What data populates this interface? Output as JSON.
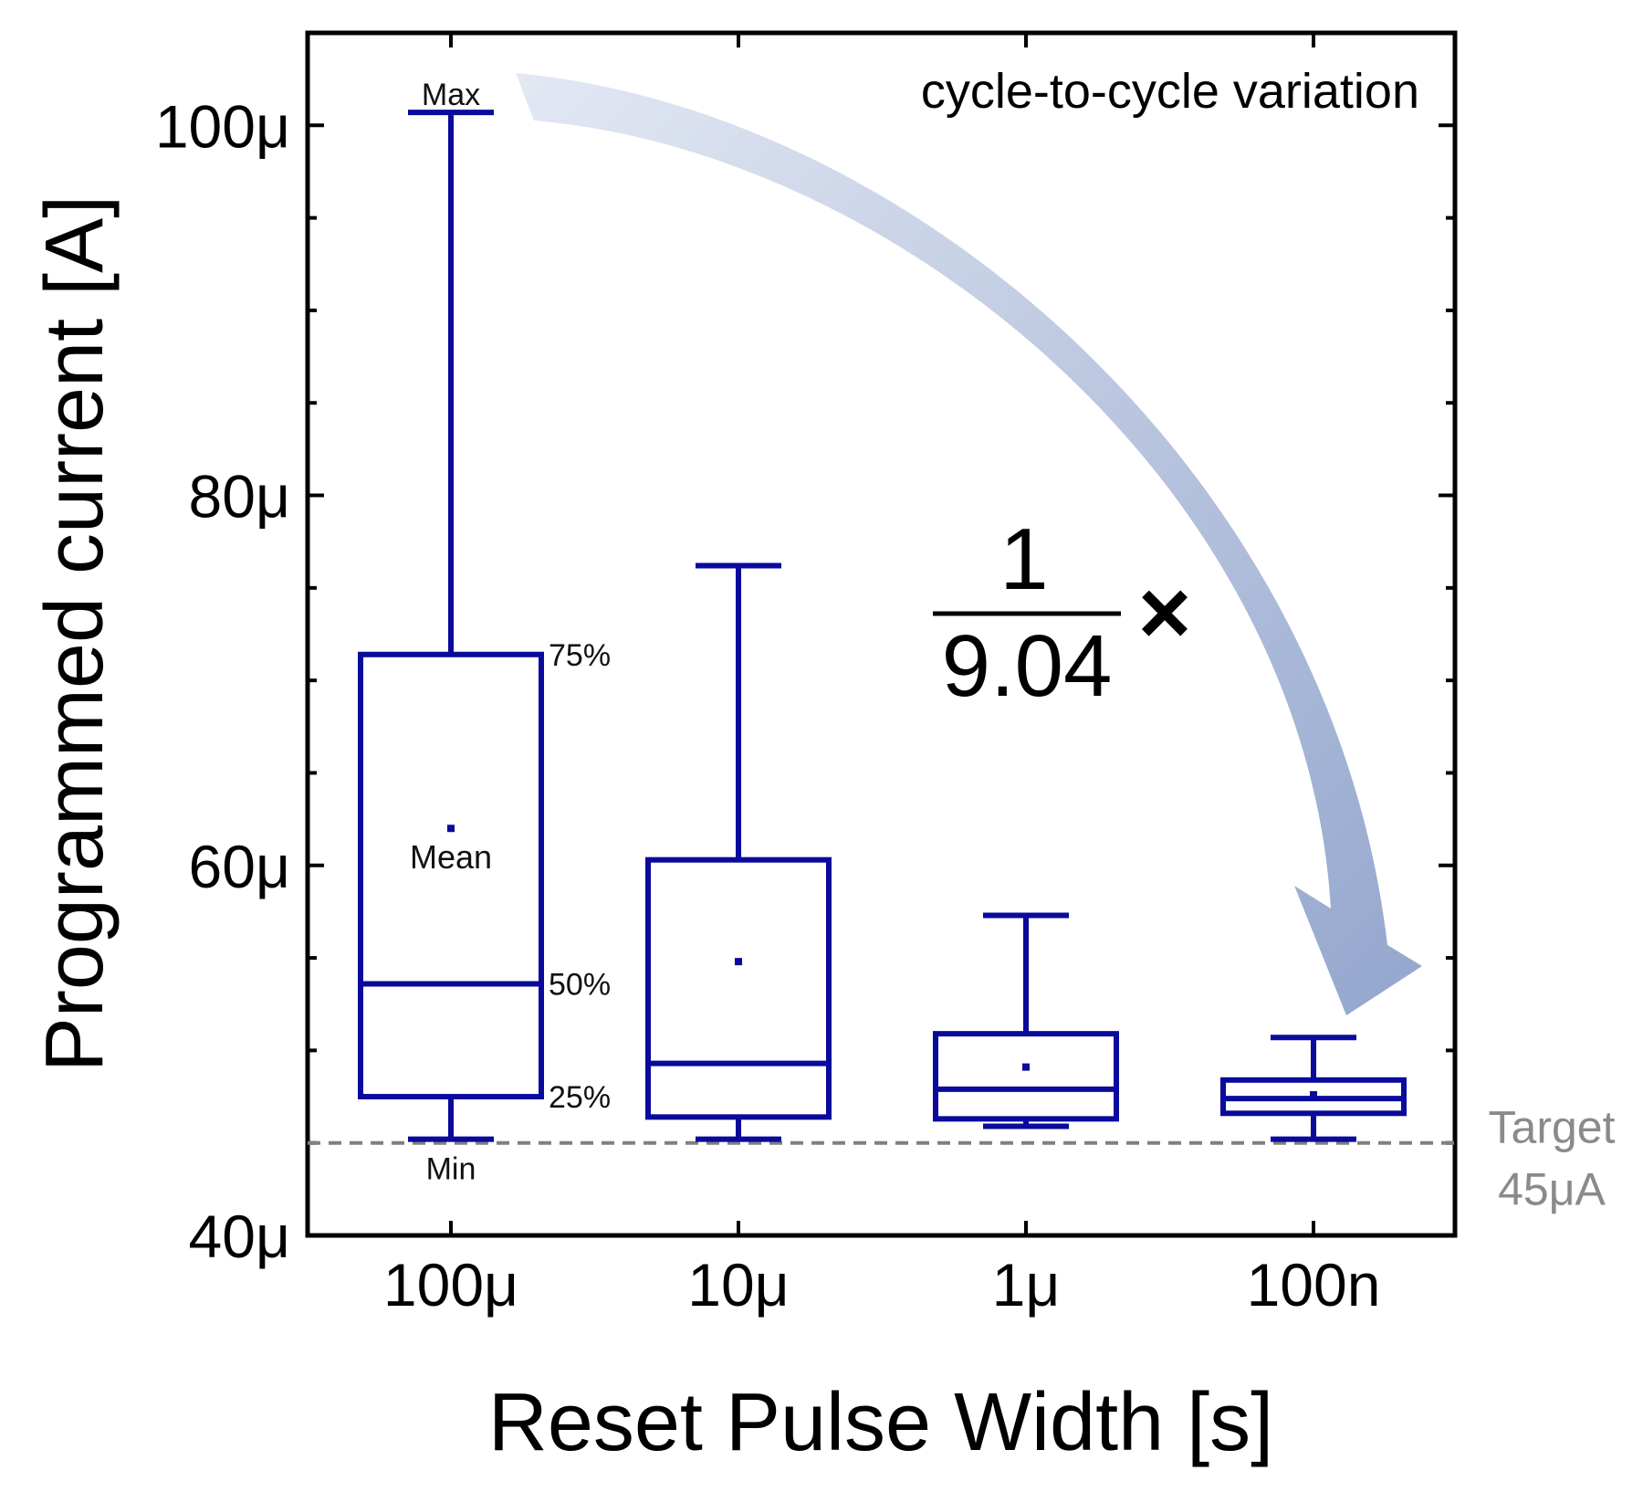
{
  "chart_data": {
    "type": "box",
    "title": "",
    "xlabel": "Reset Pulse Width [s]",
    "ylabel": "Programmed current [A]",
    "ylim": [
      40,
      105
    ],
    "yticks": [
      40,
      60,
      80,
      100
    ],
    "ytick_labels": [
      "40μ",
      "60μ",
      "80μ",
      "100μ"
    ],
    "categories": [
      "100μ",
      "10μ",
      "1μ",
      "100n"
    ],
    "series": [
      {
        "name": "Programmed current",
        "color": "#0a0a9c",
        "boxes": [
          {
            "category": "100μ",
            "min": 45.2,
            "q1": 47.5,
            "median": 53.6,
            "q3": 71.4,
            "max": 100.7,
            "mean": 62.0
          },
          {
            "category": "10μ",
            "min": 45.2,
            "q1": 46.4,
            "median": 49.3,
            "q3": 60.3,
            "max": 76.2,
            "mean": 54.8
          },
          {
            "category": "1μ",
            "min": 45.9,
            "q1": 46.3,
            "median": 47.9,
            "q3": 50.9,
            "max": 57.3,
            "mean": 49.1
          },
          {
            "category": "100n",
            "min": 45.2,
            "q1": 46.6,
            "median": 47.4,
            "q3": 48.4,
            "max": 50.7,
            "mean": 47.6
          }
        ]
      }
    ],
    "reference_line": {
      "value": 45,
      "label_line1": "Target",
      "label_line2": "45μA",
      "color": "#808080"
    },
    "box_labels": {
      "max": "Max",
      "min": "Min",
      "q3": "75%",
      "median": "50%",
      "q1": "25%",
      "mean": "Mean"
    },
    "annotation": {
      "text": "cycle-to-cycle variation",
      "numerator": "1",
      "denominator": "9.04",
      "multiplier": "×",
      "arrow_color": "#8fa3cc"
    }
  }
}
